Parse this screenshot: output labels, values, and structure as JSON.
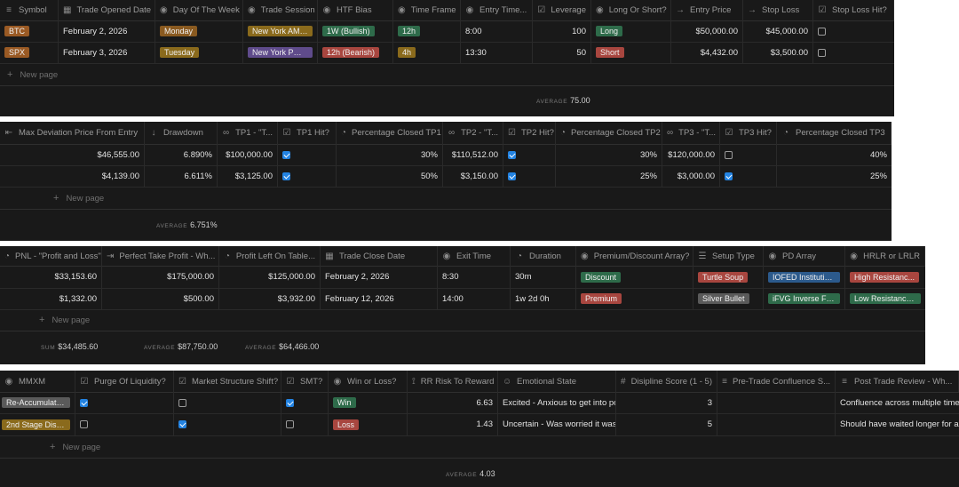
{
  "colors": {
    "panel_bg": "#191919",
    "checkbox_on": "#2383e2",
    "tag_brown": "#8a5a2b",
    "tag_orange": "#9a6221",
    "tag_purple": "#5f4b8b",
    "tag_green": "#2e6b4a",
    "tag_red": "#a8463f",
    "tag_gray": "#5a5a5a"
  },
  "new_page_label": "New page",
  "table1": {
    "headers": [
      "Symbol",
      "Trade Opened Date",
      "Day Of The Week",
      "Trade Session",
      "HTF Bias",
      "Time Frame",
      "Entry Time...",
      "Leverage",
      "Long Or Short?",
      "Entry Price",
      "Stop Loss",
      "Stop Loss Hit?"
    ],
    "header_icons": [
      "≡-icon",
      "calendar-icon",
      "circle-icon",
      "circle-icon",
      "circle-icon",
      "circle-icon",
      "circle-icon",
      "checklist-icon",
      "circle-icon",
      "arrow-icon",
      "arrow-icon",
      "checkbox-icon"
    ],
    "rows": [
      {
        "symbol": "BTC",
        "opened": "February 2, 2026",
        "day": "Monday",
        "session": "New York AM ...",
        "bias": "1W (Bullish)",
        "tf": "12h",
        "entry_time": "8:00",
        "leverage": "100",
        "side": "Long",
        "entry_price": "$50,000.00",
        "stop_loss": "$45,000.00",
        "sl_hit": false
      },
      {
        "symbol": "SPX",
        "opened": "February 3, 2026",
        "day": "Tuesday",
        "session": "New York PM ...",
        "bias": "12h (Bearish)",
        "tf": "4h",
        "entry_time": "13:30",
        "leverage": "50",
        "side": "Short",
        "entry_price": "$4,432.00",
        "stop_loss": "$3,500.00",
        "sl_hit": false
      }
    ],
    "calc_label": "AVERAGE",
    "calc_value": "75.00"
  },
  "table2": {
    "headers": [
      "Max Deviation Price From Entry",
      "Drawdown",
      "TP1 - \"T...",
      "TP1 Hit?",
      "Percentage Closed TP1",
      "TP2 - \"T...",
      "TP2 Hit?",
      "Percentage Closed TP2",
      "TP3 - \"T...",
      "TP3 Hit?",
      "Percentage Closed TP3"
    ],
    "rows": [
      {
        "max_dev": "$46,555.00",
        "drawdown": "6.890%",
        "tp1": "$100,000.00",
        "tp1_hit": true,
        "pct1": "30%",
        "tp2": "$110,512.00",
        "tp2_hit": true,
        "pct2": "30%",
        "tp3": "$120,000.00",
        "tp3_hit": false,
        "pct3": "40%"
      },
      {
        "max_dev": "$4,139.00",
        "drawdown": "6.611%",
        "tp1": "$3,125.00",
        "tp1_hit": true,
        "pct1": "50%",
        "tp2": "$3,150.00",
        "tp2_hit": true,
        "pct2": "25%",
        "tp3": "$3,000.00",
        "tp3_hit": true,
        "pct3": "25%"
      }
    ],
    "calc_label": "AVERAGE",
    "calc_value": "6.751%"
  },
  "table3": {
    "headers": [
      "PNL - \"Profit and Loss\"",
      "Perfect Take Profit - Wh...",
      "Profit Left On Table...",
      "Trade Close Date",
      "Exit Time",
      "Duration",
      "Premium/Discount Array?",
      "Setup Type",
      "PD Array",
      "HRLR or LRLR"
    ],
    "rows": [
      {
        "pnl": "$33,153.60",
        "perfect_tp": "$175,000.00",
        "left": "$125,000.00",
        "close": "February 2, 2026",
        "exit": "8:30",
        "duration": "30m",
        "pd": "Discount",
        "setup": "Turtle Soup",
        "pd_array": "IOFED Institutio...",
        "hrlr": "High Resistanc..."
      },
      {
        "pnl": "$1,332.00",
        "perfect_tp": "$500.00",
        "left": "$3,932.00",
        "close": "February 12, 2026",
        "exit": "14:00",
        "duration": "1w 2d 0h",
        "pd": "Premium",
        "setup": "Silver Bullet",
        "pd_array": "iFVG Inverse Fair...",
        "hrlr": "Low Resistance ..."
      }
    ],
    "calcs": [
      {
        "label": "SUM",
        "value": "$34,485.60"
      },
      {
        "label": "AVERAGE",
        "value": "$87,750.00"
      },
      {
        "label": "AVERAGE",
        "value": "$64,466.00"
      }
    ]
  },
  "table4": {
    "headers": [
      "MMXM",
      "Purge Of Liquidity?",
      "Market Structure Shift?",
      "SMT?",
      "Win or Loss?",
      "RR Risk To Reward",
      "Emotional State",
      "Disipline Score (1 - 5)",
      "Pre-Trade Confluence S...",
      "Post Trade Review - Wh..."
    ],
    "rows": [
      {
        "mmxm": "Re-Accumulation",
        "purge": true,
        "mss": false,
        "smt": true,
        "result": "Win",
        "rr": "6.63",
        "emotion": "Excited - Anxious to get into po",
        "score": "3",
        "pre": "",
        "post": "Confluence across multiple time"
      },
      {
        "mmxm": "2nd Stage Distri...",
        "purge": false,
        "mss": true,
        "smt": false,
        "result": "Loss",
        "rr": "1.43",
        "emotion": "Uncertain - Was worried it was",
        "score": "5",
        "pre": "",
        "post": "Should have waited longer for a"
      }
    ],
    "calc_label": "AVERAGE",
    "calc_value": "4.03"
  }
}
